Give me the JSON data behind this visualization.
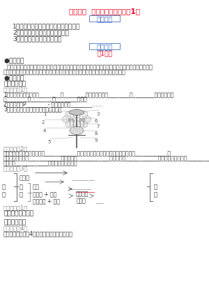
{
  "title": "《第一节  植物的生殖》学案（1）",
  "title_color": "#e8001c",
  "subtitle1": "学习目标",
  "subtitle1_color": "#4472c4",
  "subtitle2": "学习过程",
  "subtitle2_color": "#4472c4",
  "subtitle2b": "第1课时",
  "subtitle2b_color": "#e8001c",
  "bg_color": "#ffffff",
  "text_color": "#333333",
  "gray_color": "#888888",
  "body_lines": [
    {
      "text": "1、能描述植物的有性生殖和无性生殖。",
      "indent": 0.06,
      "size": 6.5
    },
    {
      "text": "2、能列举常被常见的无性生殖。",
      "indent": 0.06,
      "size": 6.5
    },
    {
      "text": "3、尝试植物的扦插或嫁接。",
      "indent": 0.06,
      "size": 6.5
    }
  ],
  "section_intro": "●导入新课",
  "intro_line1": "  「想一想，议一议」，你见过竹子开花吗？在大熊猫的栅息地，大竹节子不能会危及大熊猫的生存，",
  "intro_line2": "这是为什么呢？很少开花的竹子是如何克服能量匮乏的竹林的呢？思考其中的道理。",
  "section_explore": "●探究新知",
  "one_sexual": "一、有性生殖",
  "self_study1": "【自主学习1】",
  "q1_line1": "1、植花的主要结构依次________和________，其中前者是由________和________构成，后者是",
  "q1_line2": "由________、________和________组成。",
  "q2": "2、种子来自P________- 种胚珠来自子________……",
  "q3": "3、在括号旁写写各对应的结构的名称：",
  "self_study2": "【自主学习2】",
  "q4_line1": "受粉的过程，花粉落到雌蕊的____________以后，在某些液的刺激下开始萝发，长出____________，",
  "q4_line2": "它穿过花柱，进入____________、一直到达____________，它里面的____________，与卵在花粉管中的____________结",
  "q4_line3": "合，形成____________的过程，称为受精。",
  "self_study3": "【自主学习3】",
  "self_review1": "【自我测评1】",
  "what_sexual": "什么是有性生殖？",
  "two_asexual": "二、无性生殖",
  "self_study4": "【自主学习4】",
  "q5_text": "请认真阅读教材第4页的内容，完成以下问题。"
}
